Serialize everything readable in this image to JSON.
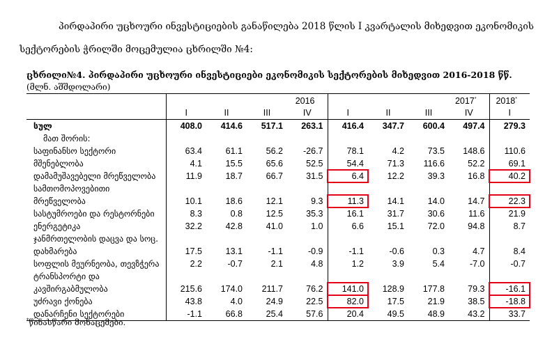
{
  "intro_text": "პირდაპირი უცხოური ინვესტიციების განაწილება 2018 წლის I კვარტალის მიხედვით ეკონომიკის სექტორების ჭრილში მოცემულია ცხრილში №4:",
  "table_caption": "ცხრილი№4. პირდაპირი უცხოური ინვესტიციები ეკონომიკის სექტორების მიხედვით 2016-2018 წწ.",
  "unit_label": "(მლნ. აშშდოლარი)",
  "years": [
    {
      "label": "2016",
      "mark": ""
    },
    {
      "label": "2017",
      "mark": "*"
    },
    {
      "label": "2018",
      "mark": "*"
    }
  ],
  "quarters": [
    "I",
    "II",
    "III",
    "IV",
    "I",
    "II",
    "III",
    "IV",
    "I"
  ],
  "rows": [
    {
      "label": "სულ",
      "values": [
        "408.0",
        "414.6",
        "517.1",
        "263.1",
        "416.4",
        "347.7",
        "600.4",
        "497.4",
        "279.3"
      ],
      "type": "total"
    },
    {
      "label": "მათ შორის:",
      "values": [],
      "type": "sub"
    },
    {
      "label": "საფინანსო სექტორი",
      "values": [
        "63.4",
        "61.1",
        "56.2",
        "-26.7",
        "78.1",
        "4.2",
        "73.5",
        "148.6",
        "110.6"
      ]
    },
    {
      "label": "მშენებლობა",
      "values": [
        "4.1",
        "15.5",
        "65.6",
        "52.5",
        "54.4",
        "71.3",
        "116.6",
        "52.2",
        "69.1"
      ]
    },
    {
      "label": "დამამუშავებელი მრეწველობა",
      "values": [
        "11.9",
        "18.7",
        "66.7",
        "31.5",
        "6.4",
        "12.2",
        "39.3",
        "16.8",
        "40.2"
      ],
      "highlight": [
        4,
        8
      ]
    },
    {
      "label": "სამთომოპოვებითი",
      "values": []
    },
    {
      "label": "მრეწველობა",
      "values": [
        "10.1",
        "18.6",
        "12.1",
        "9.3",
        "11.3",
        "14.1",
        "14.0",
        "14.7",
        "22.3"
      ],
      "highlight": [
        4,
        8
      ]
    },
    {
      "label": "სასტუმროები და რესტორნები",
      "values": [
        "8.3",
        "0.8",
        "12.5",
        "35.3",
        "16.1",
        "31.7",
        "30.6",
        "11.6",
        "21.9"
      ]
    },
    {
      "label": "ენერგეტიკა",
      "values": [
        "32.2",
        "42.8",
        "41.0",
        "1.0",
        "6.6",
        "15.1",
        "72.0",
        "94.8",
        "8.7"
      ]
    },
    {
      "label": "ჯანმრთელობის დაცვა და სოც.",
      "values": []
    },
    {
      "label": "დახმარება",
      "values": [
        "17.5",
        "13.1",
        "-1.1",
        "-0.9",
        "-1.1",
        "-0.6",
        "0.3",
        "4.7",
        "8.4"
      ]
    },
    {
      "label": "სოფლის მეურნეობა, თევზჭერა",
      "values": [
        "2.2",
        "-0.7",
        "2.1",
        "4.8",
        "1.2",
        "3.9",
        "5.4",
        "-7.0",
        "-0.7"
      ]
    },
    {
      "label": "ტრანსპორტი და",
      "values": []
    },
    {
      "label": "კავშირგაბმულობა",
      "values": [
        "215.6",
        "174.0",
        "211.7",
        "76.2",
        "141.0",
        "128.9",
        "177.8",
        "79.3",
        "-16.1"
      ],
      "highlight": [
        4,
        8
      ]
    },
    {
      "label": "უძრავი ქონება",
      "values": [
        "43.8",
        "4.0",
        "24.9",
        "22.5",
        "82.0",
        "17.5",
        "21.9",
        "38.5",
        "-18.8"
      ],
      "highlight": [
        4,
        8
      ]
    },
    {
      "label": "დანარჩენი სექტორები",
      "values": [
        "-1.1",
        "66.8",
        "25.4",
        "57.6",
        "20.4",
        "49.5",
        "48.9",
        "43.2",
        "33.7"
      ],
      "type": "last"
    }
  ],
  "footnote_mark": "*",
  "footnote_text": "წინასწარი მონაცემები.",
  "colors": {
    "highlight": "#e3001b"
  }
}
